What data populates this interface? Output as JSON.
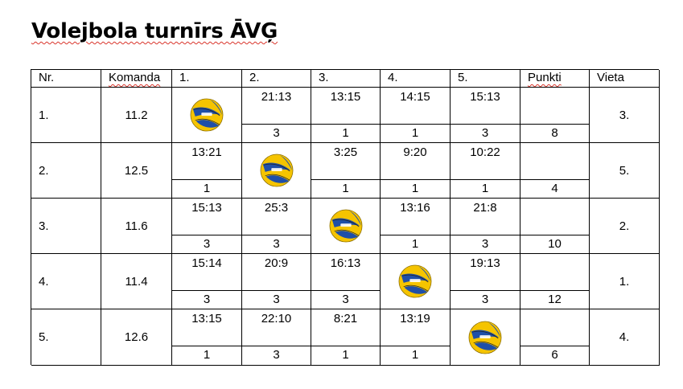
{
  "title": "Volejbola turnīrs ĀVĢ",
  "headers": [
    "Nr.",
    "Komanda",
    "1.",
    "2.",
    "3.",
    "4.",
    "5.",
    "Punkti",
    "Vieta"
  ],
  "ball_icon": "volleyball-icon",
  "colors": {
    "ball_yellow": "#f5c400",
    "ball_blue": "#1f4fa8",
    "spellcheck": "#d9342b"
  },
  "rows": [
    {
      "nr": "1.",
      "team": "11.2",
      "scores": [
        "",
        "21:13",
        "13:15",
        "14:15",
        "15:13"
      ],
      "points": [
        "",
        "3",
        "1",
        "1",
        "3"
      ],
      "total": "8",
      "place": "3."
    },
    {
      "nr": "2.",
      "team": "12.5",
      "scores": [
        "13:21",
        "",
        "3:25",
        "9:20",
        "10:22"
      ],
      "points": [
        "1",
        "",
        "1",
        "1",
        "1"
      ],
      "total": "4",
      "place": "5."
    },
    {
      "nr": "3.",
      "team": "11.6",
      "scores": [
        "15:13",
        "25:3",
        "",
        "13:16",
        "21:8"
      ],
      "points": [
        "3",
        "3",
        "",
        "1",
        "3"
      ],
      "total": "10",
      "place": "2."
    },
    {
      "nr": "4.",
      "team": "11.4",
      "scores": [
        "15:14",
        "20:9",
        "16:13",
        "",
        "19:13"
      ],
      "points": [
        "3",
        "3",
        "3",
        "",
        "3"
      ],
      "total": "12",
      "place": "1."
    },
    {
      "nr": "5.",
      "team": "12.6",
      "scores": [
        "13:15",
        "22:10",
        "8:21",
        "13:19",
        ""
      ],
      "points": [
        "1",
        "3",
        "1",
        "1",
        ""
      ],
      "total": "6",
      "place": "4."
    }
  ]
}
